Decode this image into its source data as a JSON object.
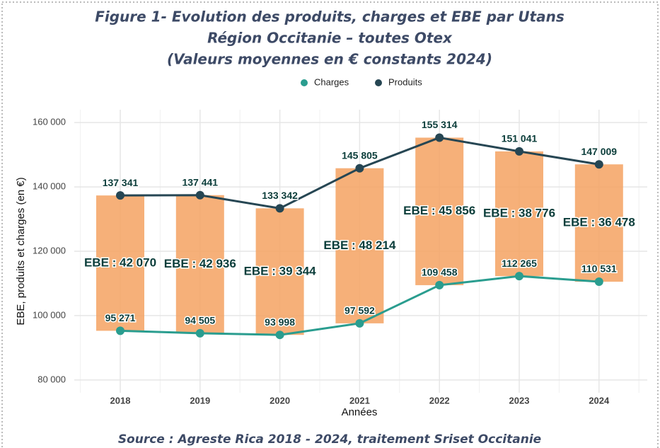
{
  "chart_data": {
    "type": "line",
    "title": [
      "Figure 1- Evolution des produits, charges et EBE par Utans",
      "Région Occitanie – toutes Otex",
      "(Valeurs moyennes en € constants 2024)"
    ],
    "source": "Source : Agreste Rica 2018 - 2024, traitement Sriset Occitanie",
    "x_label": "Années",
    "y_label": "EBE, produits et charges (en €)",
    "categories": [
      "2018",
      "2019",
      "2020",
      "2021",
      "2022",
      "2023",
      "2024"
    ],
    "series": [
      {
        "name": "Charges",
        "color": "#2a9d8f",
        "values": [
          95271,
          94505,
          93998,
          97592,
          109458,
          112265,
          110531
        ],
        "value_labels": [
          "95 271",
          "94 505",
          "93 998",
          "97 592",
          "109 458",
          "112 265",
          "110 531"
        ]
      },
      {
        "name": "Produits",
        "color": "#264653",
        "values": [
          137341,
          137441,
          133342,
          145805,
          155314,
          151041,
          147009
        ],
        "value_labels": [
          "137 341",
          "137 441",
          "133 342",
          "145 805",
          "155 314",
          "151 041",
          "147 009"
        ]
      }
    ],
    "ebe": {
      "color": "#f4a261",
      "values": [
        42070,
        42936,
        39344,
        48214,
        45856,
        38776,
        36478
      ],
      "value_labels": [
        "EBE : 42 070",
        "EBE : 42 936",
        "EBE : 39 344",
        "EBE : 48 214",
        "EBE : 45 856",
        "EBE : 38 776",
        "EBE : 36 478"
      ]
    },
    "ylim": [
      76000,
      164000
    ],
    "yticks": [
      {
        "value": 80000,
        "label": "80 000"
      },
      {
        "value": 100000,
        "label": "100 000"
      },
      {
        "value": 120000,
        "label": "120 000"
      },
      {
        "value": 140000,
        "label": "140 000"
      },
      {
        "value": 160000,
        "label": "160 000"
      }
    ],
    "grid": true
  }
}
